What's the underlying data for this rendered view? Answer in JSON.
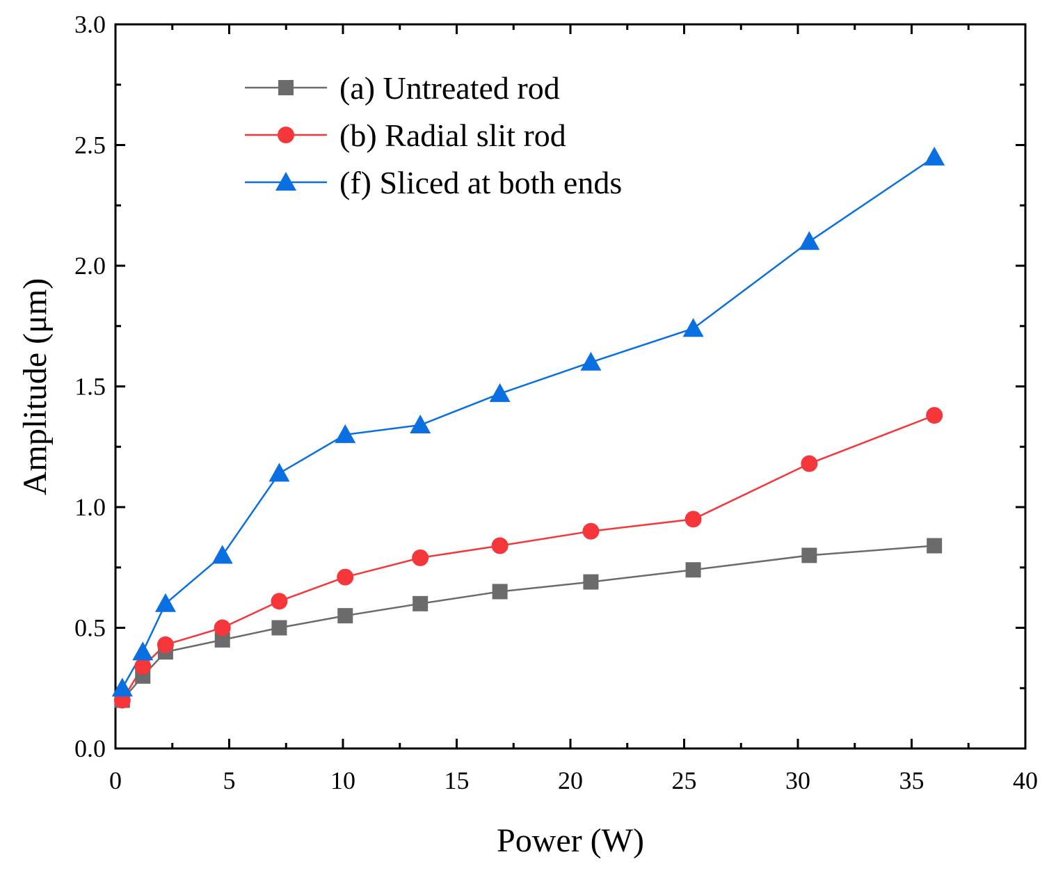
{
  "chart_data": {
    "type": "line",
    "xlabel": "Power (W)",
    "ylabel": "Amplitude (μm)",
    "xlim": [
      0,
      40
    ],
    "ylim": [
      0,
      3.0
    ],
    "xticks": [
      0,
      5,
      10,
      15,
      20,
      25,
      30,
      35,
      40
    ],
    "xtick_labels": [
      "0",
      "5",
      "10",
      "15",
      "20",
      "25",
      "30",
      "35",
      "40"
    ],
    "yticks": [
      0,
      0.5,
      1.0,
      1.5,
      2.0,
      2.5,
      3.0
    ],
    "ytick_labels": [
      "0.0",
      "0.5",
      "1.0",
      "1.5",
      "2.0",
      "2.5",
      "3.0"
    ],
    "grid": false,
    "legend_position": "top-left",
    "x": [
      0.3,
      1.2,
      2.2,
      4.7,
      7.2,
      10.1,
      13.4,
      16.9,
      20.9,
      25.4,
      30.5,
      36.0
    ],
    "series": [
      {
        "name": "(a) Untreated rod",
        "marker": "square",
        "color": "#6b6b6b",
        "values": [
          0.2,
          0.3,
          0.4,
          0.45,
          0.5,
          0.55,
          0.6,
          0.65,
          0.69,
          0.74,
          0.8,
          0.84
        ]
      },
      {
        "name": "(b) Radial slit rod",
        "marker": "circle",
        "color": "#f5363a",
        "values": [
          0.2,
          0.34,
          0.43,
          0.5,
          0.61,
          0.71,
          0.79,
          0.84,
          0.9,
          0.95,
          1.18,
          1.38
        ]
      },
      {
        "name": "(f) Sliced at both ends",
        "marker": "triangle",
        "color": "#0a6fe0",
        "values": [
          0.25,
          0.4,
          0.6,
          0.8,
          1.14,
          1.3,
          1.34,
          1.47,
          1.6,
          1.74,
          2.1,
          2.45
        ]
      }
    ]
  }
}
